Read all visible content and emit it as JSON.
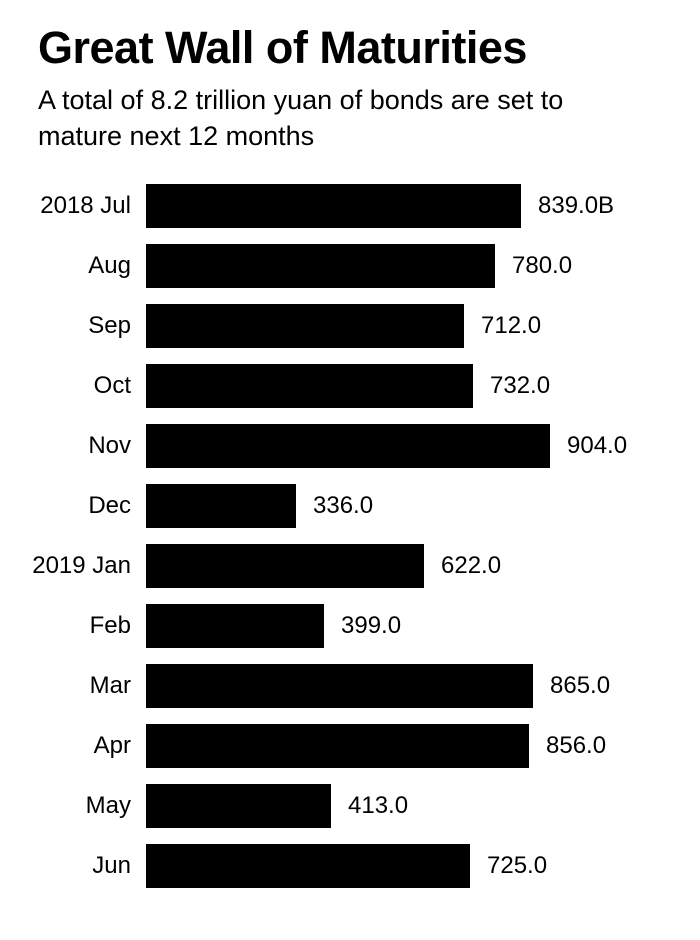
{
  "header": {
    "title": "Great Wall of Maturities",
    "subtitle": "A total of 8.2 trillion yuan of bonds are set to mature next 12 months"
  },
  "chart_data": {
    "type": "bar",
    "orientation": "horizontal",
    "title": "Great Wall of Maturities",
    "subtitle": "A total of 8.2 trillion yuan of bonds are set to mature next 12 months",
    "categories": [
      "2018 Jul",
      "Aug",
      "Sep",
      "Oct",
      "Nov",
      "Dec",
      "2019 Jan",
      "Feb",
      "Mar",
      "Apr",
      "May",
      "Jun"
    ],
    "values": [
      839,
      780,
      712,
      732,
      904,
      336,
      622,
      399,
      865,
      856,
      413,
      725
    ],
    "value_labels": [
      "839.0B",
      "780.0",
      "712.0",
      "732.0",
      "904.0",
      "336.0",
      "622.0",
      "399.0",
      "865.0",
      "856.0",
      "413.0",
      "725.0"
    ],
    "unit": "billion yuan",
    "xlabel": "",
    "ylabel": "",
    "xlim": [
      0,
      904
    ],
    "grid": false,
    "legend": false,
    "colors": {
      "bar": "#000000",
      "background": "#ffffff",
      "text": "#000000"
    }
  }
}
